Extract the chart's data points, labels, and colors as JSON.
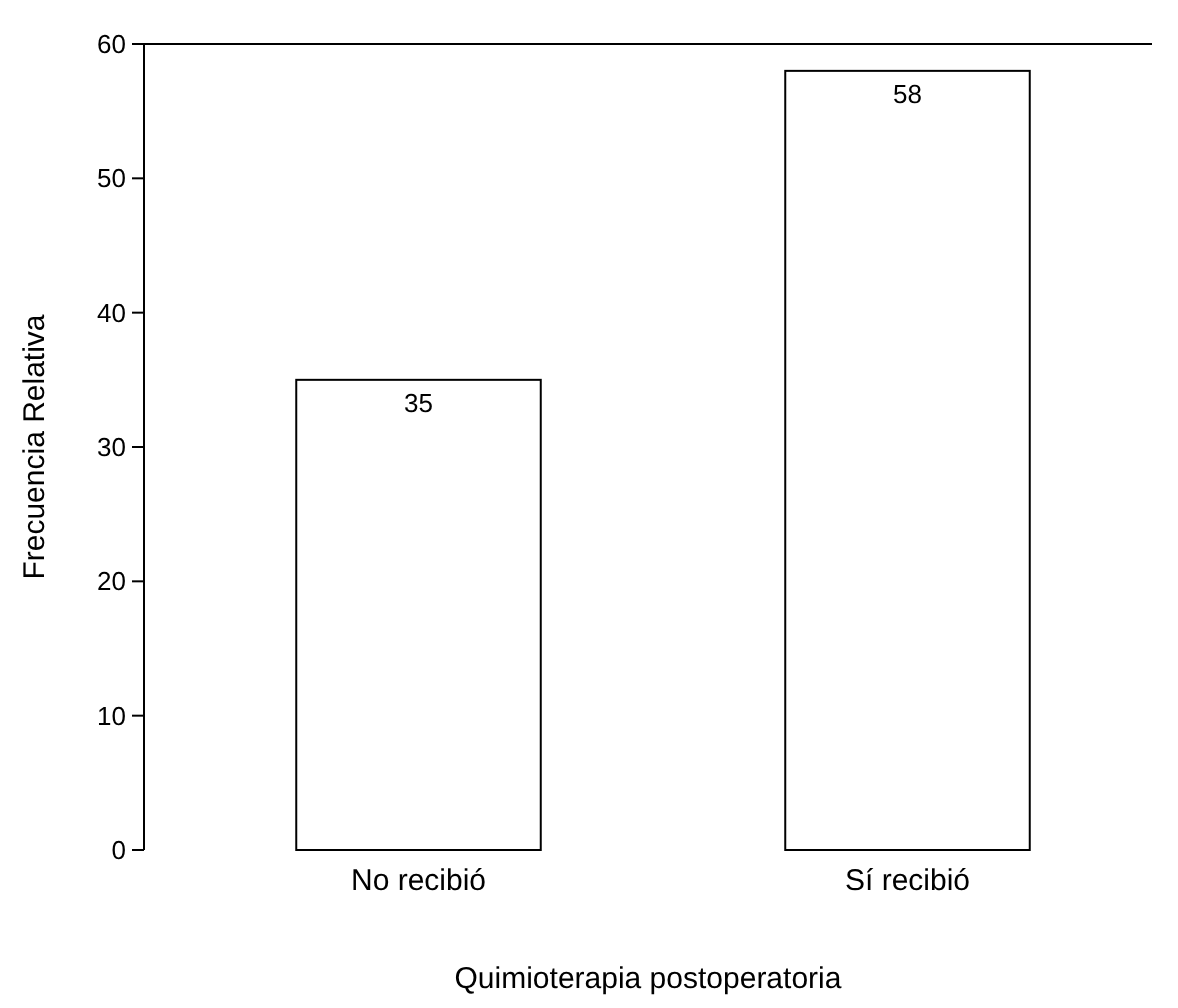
{
  "chart_data": {
    "type": "bar",
    "xlabel": "Quimioterapia postoperatoria",
    "ylabel": "Frecuencia Relativa",
    "categories": [
      "No recibió",
      "Sí recibió"
    ],
    "values": [
      35,
      58
    ],
    "color": "#ffffff",
    "ylim": [
      0,
      60
    ],
    "yticks": [
      0,
      10,
      20,
      30,
      40,
      50,
      60
    ],
    "data_labels": true,
    "grid": false
  }
}
